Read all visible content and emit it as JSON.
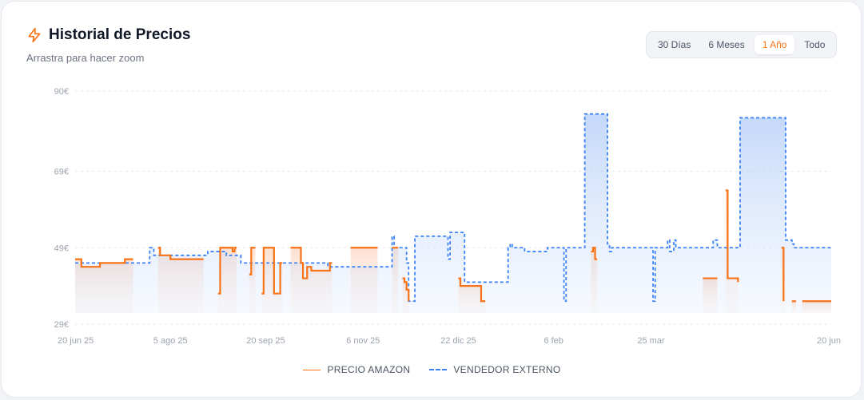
{
  "header": {
    "title": "Historial de Precios",
    "subtitle": "Arrastra para hacer zoom",
    "icon": "lightning-icon"
  },
  "range_buttons": [
    {
      "label": "30 Días",
      "active": false
    },
    {
      "label": "6 Meses",
      "active": false
    },
    {
      "label": "1 Año",
      "active": true
    },
    {
      "label": "Todo",
      "active": false
    }
  ],
  "colors": {
    "accent": "#f97316",
    "amazon": "#f97316",
    "third_party": "#3b82f6",
    "grid": "#e5e7eb"
  },
  "legend": {
    "amazon": "PRECIO AMAZON",
    "third_party": "VENDEDOR EXTERNO"
  },
  "chart_data": {
    "type": "line",
    "title": "",
    "xlabel": "",
    "ylabel": "",
    "ylim": [
      29,
      90
    ],
    "y_ticks": [
      {
        "value": 90,
        "label": "90€"
      },
      {
        "value": 69,
        "label": "69€"
      },
      {
        "value": 49,
        "label": "49€"
      },
      {
        "value": 29,
        "label": "29€"
      }
    ],
    "x_range": [
      "2025-06-20",
      "2026-06-20"
    ],
    "x_ticks": [
      {
        "date": "2025-06-20",
        "label": "20 jun 25"
      },
      {
        "date": "2025-08-05",
        "label": "5 ago 25"
      },
      {
        "date": "2025-09-20",
        "label": "20 sep 25"
      },
      {
        "date": "2025-11-06",
        "label": "6 nov 25"
      },
      {
        "date": "2025-12-22",
        "label": "22 dic 25"
      },
      {
        "date": "2026-02-06",
        "label": "6 feb"
      },
      {
        "date": "2026-03-25",
        "label": "25 mar"
      },
      {
        "date": "2026-06-20",
        "label": "20 jun"
      }
    ],
    "grid": true,
    "legend_position": "bottom",
    "series": [
      {
        "name": "PRECIO AMAZON",
        "style": "solid",
        "step": true,
        "segments": [
          [
            [
              "2025-06-20",
              46
            ],
            [
              "2025-06-23",
              44
            ],
            [
              "2025-07-01",
              44
            ],
            [
              "2025-07-02",
              45
            ],
            [
              "2025-07-13",
              45
            ],
            [
              "2025-07-14",
              46
            ],
            [
              "2025-07-18",
              46
            ]
          ],
          [
            [
              "2025-07-30",
              49
            ],
            [
              "2025-07-31",
              47
            ],
            [
              "2025-08-05",
              46
            ],
            [
              "2025-08-21",
              46
            ]
          ],
          [
            [
              "2025-08-28",
              37
            ],
            [
              "2025-08-29",
              49
            ],
            [
              "2025-09-03",
              49
            ],
            [
              "2025-09-04",
              48
            ],
            [
              "2025-09-05",
              49
            ],
            [
              "2025-09-06",
              49
            ]
          ],
          [
            [
              "2025-09-12",
              42
            ],
            [
              "2025-09-13",
              49
            ],
            [
              "2025-09-15",
              49
            ]
          ],
          [
            [
              "2025-09-18",
              37
            ],
            [
              "2025-09-19",
              49
            ],
            [
              "2025-09-23",
              49
            ],
            [
              "2025-09-24",
              37
            ],
            [
              "2025-09-26",
              37
            ],
            [
              "2025-09-27",
              45
            ],
            [
              "2025-09-28",
              45
            ]
          ],
          [
            [
              "2025-10-02",
              49
            ],
            [
              "2025-10-06",
              49
            ],
            [
              "2025-10-07",
              45
            ],
            [
              "2025-10-08",
              41
            ],
            [
              "2025-10-09",
              41
            ],
            [
              "2025-10-10",
              44
            ],
            [
              "2025-10-11",
              44
            ],
            [
              "2025-10-12",
              43
            ],
            [
              "2025-10-20",
              43
            ],
            [
              "2025-10-21",
              45
            ],
            [
              "2025-10-22",
              45
            ]
          ],
          [
            [
              "2025-10-31",
              49
            ],
            [
              "2025-11-13",
              49
            ]
          ],
          [
            [
              "2025-11-20",
              49
            ],
            [
              "2025-11-23",
              49
            ]
          ],
          [
            [
              "2025-11-25",
              41
            ],
            [
              "2025-11-26",
              40
            ],
            [
              "2025-11-27",
              38
            ],
            [
              "2025-11-28",
              35
            ]
          ],
          [
            [
              "2025-12-22",
              41
            ],
            [
              "2025-12-23",
              39
            ],
            [
              "2026-01-01",
              39
            ],
            [
              "2026-01-02",
              35
            ],
            [
              "2026-01-04",
              35
            ]
          ],
          [
            [
              "2026-02-24",
              48
            ],
            [
              "2026-02-25",
              49
            ],
            [
              "2026-02-26",
              46
            ],
            [
              "2026-02-27",
              46
            ]
          ],
          [
            [
              "2026-04-19",
              41
            ],
            [
              "2026-04-26",
              41
            ]
          ],
          [
            [
              "2026-04-30",
              64
            ],
            [
              "2026-05-01",
              41
            ],
            [
              "2026-05-06",
              40
            ]
          ],
          [
            [
              "2026-05-27",
              49
            ],
            [
              "2026-05-28",
              35
            ]
          ],
          [
            [
              "2026-06-01",
              35
            ],
            [
              "2026-06-03",
              35
            ]
          ],
          [
            [
              "2026-06-06",
              35
            ],
            [
              "2026-06-20",
              35
            ]
          ]
        ]
      },
      {
        "name": "VENDEDOR EXTERNO",
        "style": "dashed",
        "step": true,
        "segments": [
          [
            [
              "2025-06-20",
              45
            ],
            [
              "2025-07-25",
              45
            ],
            [
              "2025-07-26",
              49
            ],
            [
              "2025-07-28",
              47
            ],
            [
              "2025-08-22",
              47
            ],
            [
              "2025-08-23",
              48
            ],
            [
              "2025-09-01",
              47
            ],
            [
              "2025-09-07",
              47
            ],
            [
              "2025-09-08",
              45
            ],
            [
              "2025-10-19",
              45
            ],
            [
              "2025-10-20",
              44
            ],
            [
              "2025-11-19",
              44
            ],
            [
              "2025-11-20",
              52
            ],
            [
              "2025-11-21",
              49
            ],
            [
              "2025-11-26",
              49
            ],
            [
              "2025-11-27",
              45
            ],
            [
              "2025-11-28",
              35
            ],
            [
              "2025-11-30",
              35
            ],
            [
              "2025-12-01",
              52
            ],
            [
              "2025-12-16",
              52
            ],
            [
              "2025-12-17",
              46
            ],
            [
              "2025-12-18",
              53
            ],
            [
              "2025-12-24",
              53
            ],
            [
              "2025-12-25",
              40
            ],
            [
              "2026-01-14",
              40
            ],
            [
              "2026-01-15",
              49
            ],
            [
              "2026-01-16",
              50
            ],
            [
              "2026-01-17",
              49
            ],
            [
              "2026-01-22",
              49
            ],
            [
              "2026-01-23",
              48
            ],
            [
              "2026-02-02",
              48
            ],
            [
              "2026-02-03",
              49
            ],
            [
              "2026-02-10",
              49
            ],
            [
              "2026-02-11",
              35
            ],
            [
              "2026-02-12",
              49
            ],
            [
              "2026-02-20",
              49
            ],
            [
              "2026-02-21",
              84
            ],
            [
              "2026-03-03",
              84
            ],
            [
              "2026-03-04",
              50
            ],
            [
              "2026-03-05",
              48
            ],
            [
              "2026-03-06",
              49
            ],
            [
              "2026-03-25",
              49
            ],
            [
              "2026-03-26",
              35
            ],
            [
              "2026-03-27",
              49
            ],
            [
              "2026-04-01",
              49
            ],
            [
              "2026-04-02",
              51
            ],
            [
              "2026-04-03",
              48
            ],
            [
              "2026-04-05",
              51
            ],
            [
              "2026-04-06",
              49
            ],
            [
              "2026-04-23",
              49
            ],
            [
              "2026-04-24",
              51
            ],
            [
              "2026-04-26",
              49
            ],
            [
              "2026-05-06",
              49
            ],
            [
              "2026-05-07",
              83
            ],
            [
              "2026-05-28",
              83
            ],
            [
              "2026-05-29",
              51
            ],
            [
              "2026-06-01",
              50
            ],
            [
              "2026-06-02",
              49
            ],
            [
              "2026-06-20",
              49
            ]
          ]
        ]
      }
    ]
  }
}
